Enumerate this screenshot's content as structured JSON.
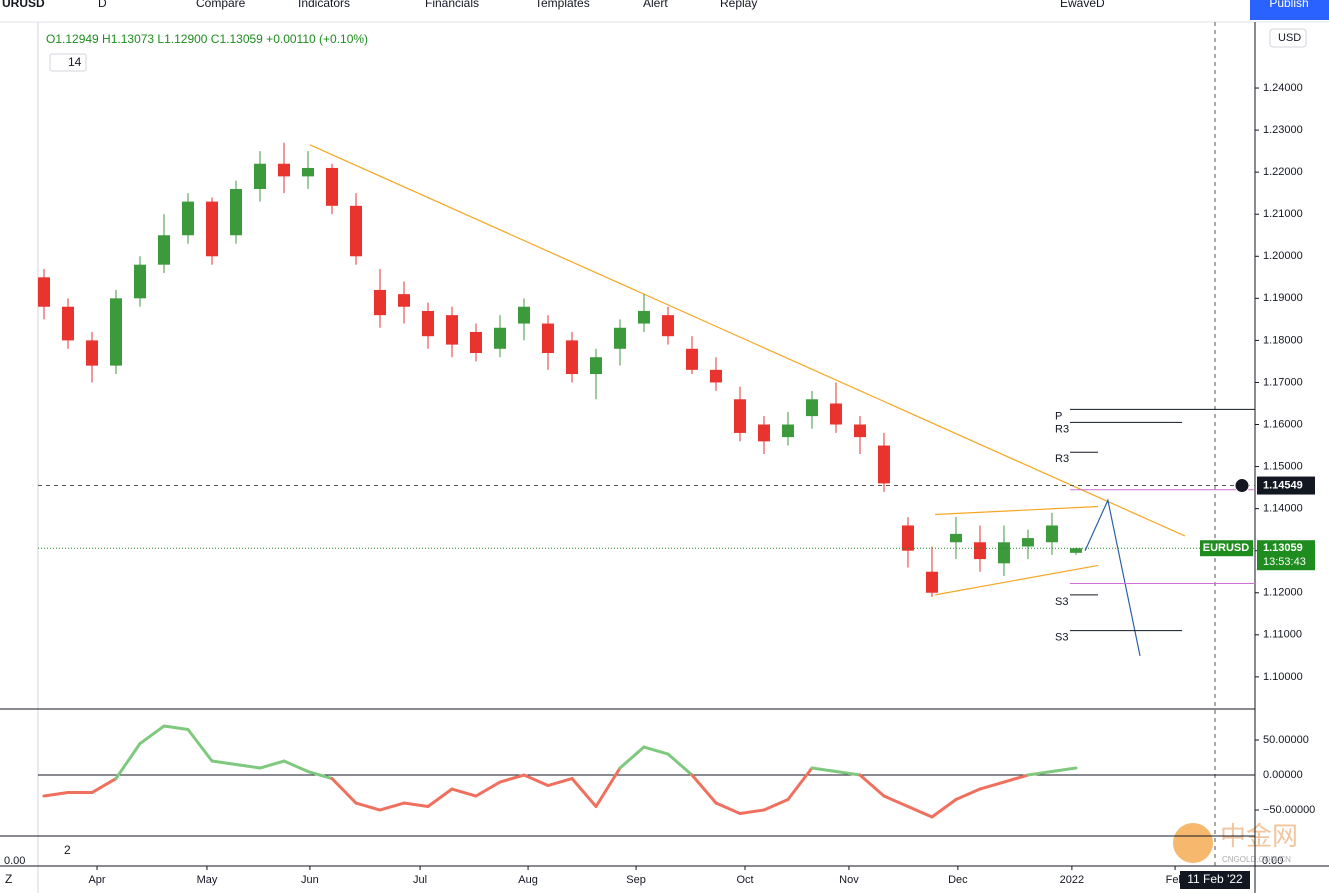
{
  "toolbar": {
    "symbol": "URUSD",
    "interval": "D",
    "items": [
      "Compare",
      "Indicators",
      "Financials",
      "Templates",
      "Alert",
      "Replay"
    ],
    "layout": "EwaveD",
    "publish": "Publish",
    "currency": "USD"
  },
  "legend": {
    "ohlc": "O1.12949 H1.13073 L1.12900 C1.13059 +0.00110 (+0.10%)",
    "length": "14",
    "panel3": "2"
  },
  "footer": {
    "zoom": "Z",
    "date": "11 Feb '22",
    "left_value": "0.00",
    "right_value": "0.00",
    "watermark": "中金网",
    "watermark_sub": "CNGOLD.COM.CN"
  },
  "chart_data": [
    {
      "type": "candlestick",
      "up_color": "#3c9a3c",
      "down_color": "#e8332f",
      "open": [
        1.195,
        1.188,
        1.18,
        1.174,
        1.19,
        1.198,
        1.205,
        1.213,
        1.205,
        1.216,
        1.222,
        1.219,
        1.221,
        1.212,
        1.192,
        1.191,
        1.187,
        1.186,
        1.182,
        1.178,
        1.184,
        1.184,
        1.18,
        1.172,
        1.178,
        1.184,
        1.186,
        1.178,
        1.173,
        1.166,
        1.16,
        1.157,
        1.162,
        1.165,
        1.16,
        1.155,
        1.136,
        1.125,
        1.132,
        1.132,
        1.127,
        1.131,
        1.132,
        1.12949
      ],
      "high": [
        1.197,
        1.19,
        1.182,
        1.192,
        1.2,
        1.21,
        1.215,
        1.214,
        1.218,
        1.225,
        1.227,
        1.225,
        1.222,
        1.215,
        1.197,
        1.194,
        1.189,
        1.188,
        1.184,
        1.186,
        1.19,
        1.186,
        1.182,
        1.178,
        1.185,
        1.191,
        1.188,
        1.181,
        1.176,
        1.169,
        1.162,
        1.163,
        1.168,
        1.17,
        1.162,
        1.158,
        1.138,
        1.131,
        1.138,
        1.136,
        1.136,
        1.135,
        1.139,
        1.13073
      ],
      "low": [
        1.185,
        1.178,
        1.17,
        1.172,
        1.188,
        1.196,
        1.203,
        1.198,
        1.203,
        1.213,
        1.215,
        1.216,
        1.21,
        1.198,
        1.183,
        1.184,
        1.178,
        1.176,
        1.175,
        1.176,
        1.18,
        1.173,
        1.17,
        1.166,
        1.174,
        1.182,
        1.179,
        1.172,
        1.168,
        1.156,
        1.153,
        1.155,
        1.159,
        1.158,
        1.153,
        1.144,
        1.126,
        1.119,
        1.128,
        1.125,
        1.124,
        1.128,
        1.129,
        1.129
      ],
      "close": [
        1.188,
        1.18,
        1.174,
        1.19,
        1.198,
        1.205,
        1.213,
        1.2,
        1.216,
        1.222,
        1.219,
        1.221,
        1.212,
        1.2,
        1.186,
        1.188,
        1.181,
        1.179,
        1.177,
        1.183,
        1.188,
        1.177,
        1.172,
        1.176,
        1.183,
        1.187,
        1.181,
        1.173,
        1.17,
        1.158,
        1.156,
        1.16,
        1.166,
        1.16,
        1.157,
        1.146,
        1.13,
        1.12,
        1.134,
        1.128,
        1.132,
        1.133,
        1.136,
        1.13059
      ],
      "xlim": [
        -0.25,
        50.46
      ],
      "ylim": [
        1.0926,
        1.2557
      ],
      "xticks": [
        {
          "value": 2.21,
          "label": "Apr"
        },
        {
          "value": 6.79,
          "label": "May"
        },
        {
          "value": 11.08,
          "label": "Jun"
        },
        {
          "value": 15.67,
          "label": "Jul"
        },
        {
          "value": 20.17,
          "label": "Aug"
        },
        {
          "value": 24.67,
          "label": "Sep"
        },
        {
          "value": 29.21,
          "label": "Oct"
        },
        {
          "value": 33.54,
          "label": "Nov"
        },
        {
          "value": 38.08,
          "label": "Dec"
        },
        {
          "value": 42.83,
          "label": "2022"
        },
        {
          "value": 47.13,
          "label": "Feb"
        }
      ],
      "yticks": [
        {
          "value": 1.1,
          "label": "1.10000"
        },
        {
          "value": 1.11,
          "label": "1.11000"
        },
        {
          "value": 1.12,
          "label": "1.12000"
        },
        {
          "value": 1.13,
          "label": "1.13000"
        },
        {
          "value": 1.14,
          "label": "1.14000"
        },
        {
          "value": 1.15,
          "label": "1.15000"
        },
        {
          "value": 1.16,
          "label": "1.16000"
        },
        {
          "value": 1.17,
          "label": "1.17000"
        },
        {
          "value": 1.18,
          "label": "1.18000"
        },
        {
          "value": 1.19,
          "label": "1.19000"
        },
        {
          "value": 1.2,
          "label": "1.20000"
        },
        {
          "value": 1.21,
          "label": "1.21000"
        },
        {
          "value": 1.22,
          "label": "1.22000"
        },
        {
          "value": 1.23,
          "label": "1.23000"
        },
        {
          "value": 1.24,
          "label": "1.24000"
        }
      ],
      "last_price": {
        "symbol": "EURUSD",
        "value": 1.13059,
        "countdown": "13:53:43",
        "color": "#1e8c1e"
      },
      "cursor_price": {
        "value": 1.14549,
        "color": "#131722"
      },
      "pivots": [
        {
          "label": "P",
          "value": 1.1636
        },
        {
          "label": "R3",
          "value": 1.1605
        },
        {
          "label": "R3",
          "value": 1.1534
        },
        {
          "label": "S3",
          "value": 1.1195
        },
        {
          "label": "S3",
          "value": 1.111
        }
      ],
      "levels": [
        {
          "value": 1.1445,
          "color": "#d070d0"
        },
        {
          "value": 1.1222,
          "color": "#d070d0"
        }
      ],
      "drawings": [
        {
          "color": "#f5a623",
          "x": [
            11.08,
            47.54
          ],
          "y": [
            1.2265,
            1.1335
          ]
        },
        {
          "color": "#f5a623",
          "x": [
            37.13,
            43.92
          ],
          "y": [
            1.1386,
            1.1405
          ]
        },
        {
          "color": "#f5a623",
          "x": [
            37.13,
            43.92
          ],
          "y": [
            1.1195,
            1.1265
          ]
        },
        {
          "color": "#2962a8",
          "x": [
            43.38,
            44.33,
            45.67
          ],
          "y": [
            1.13,
            1.142,
            1.105
          ]
        }
      ]
    },
    {
      "type": "line",
      "pos_color": "#7fc97f",
      "neg_color": "#f0705f",
      "values": [
        -30,
        -25,
        -25,
        -5,
        45,
        70,
        65,
        20,
        15,
        10,
        20,
        5,
        -5,
        -40,
        -50,
        -40,
        -45,
        -20,
        -30,
        -10,
        0,
        -15,
        -5,
        -45,
        10,
        40,
        30,
        0,
        -40,
        -55,
        -50,
        -35,
        10,
        5,
        0,
        -30,
        -45,
        -60,
        -35,
        -20,
        -10,
        0,
        5,
        10
      ],
      "ylim": [
        -85.7,
        92.9
      ],
      "yticks": [
        {
          "value": 50,
          "label": "50.00000"
        },
        {
          "value": 0,
          "label": "0.00000"
        },
        {
          "value": -50,
          "label": "−50.00000"
        }
      ]
    }
  ]
}
